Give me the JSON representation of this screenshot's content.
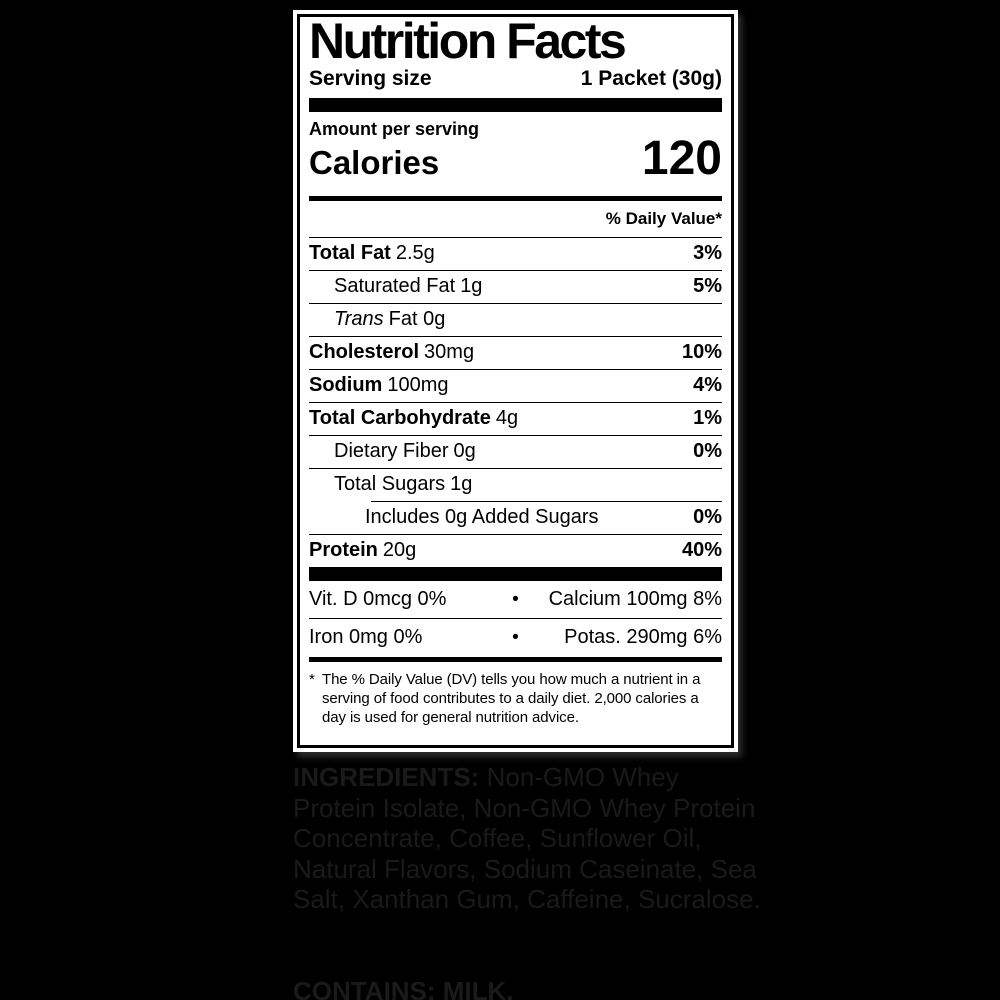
{
  "page": {
    "background_color": "#000000",
    "label_background_color": "#ffffff",
    "label_text_color": "#000000",
    "below_text_color": "#1a1a1a"
  },
  "label": {
    "title": "Nutrition Facts",
    "serving_label": "Serving size",
    "serving_value": "1 Packet (30g)",
    "amount_per_serving": "Amount per serving",
    "calories_label": "Calories",
    "calories_value": "120",
    "daily_value_header": "% Daily Value*",
    "rows": [
      {
        "name": "Total Fat",
        "amount": "2.5g",
        "dv": "3%"
      },
      {
        "name": "Saturated Fat",
        "amount": "1g",
        "dv": "5%"
      },
      {
        "name": "Trans",
        "amount": "Fat 0g",
        "dv": ""
      },
      {
        "name": "Cholesterol",
        "amount": "30mg",
        "dv": "10%"
      },
      {
        "name": "Sodium",
        "amount": "100mg",
        "dv": "4%"
      },
      {
        "name": "Total Carbohydrate",
        "amount": "4g",
        "dv": "1%"
      },
      {
        "name": "Dietary Fiber",
        "amount": "0g",
        "dv": "0%"
      },
      {
        "name": "Total Sugars",
        "amount": "1g",
        "dv": ""
      },
      {
        "name": "Includes 0g Added Sugars",
        "amount": "",
        "dv": "0%"
      },
      {
        "name": "Protein",
        "amount": "20g",
        "dv": "40%"
      }
    ],
    "micronutrients": {
      "bullet": "•",
      "rows": [
        {
          "left": "Vit. D 0mcg 0%",
          "right": "Calcium 100mg 8%"
        },
        {
          "left": "Iron 0mg 0%",
          "right": "Potas. 290mg 6%"
        }
      ]
    },
    "footnote_marker": "*",
    "footnote": "The % Daily Value (DV) tells you how much a nutrient in a serving of food contributes to a daily diet. 2,000 calories a day is used for general nutrition advice."
  },
  "below": {
    "ingredients_label": "INGREDIENTS:",
    "ingredients_text": "Non-GMO Whey Protein Isolate, Non-GMO Whey Protein Concentrate, Coffee, Sunflower Oil, Natural Flavors, Sodium Caseinate, Sea Salt, Xanthan Gum, Caffeine, Sucralose.",
    "contains": "CONTAINS: MILK."
  }
}
